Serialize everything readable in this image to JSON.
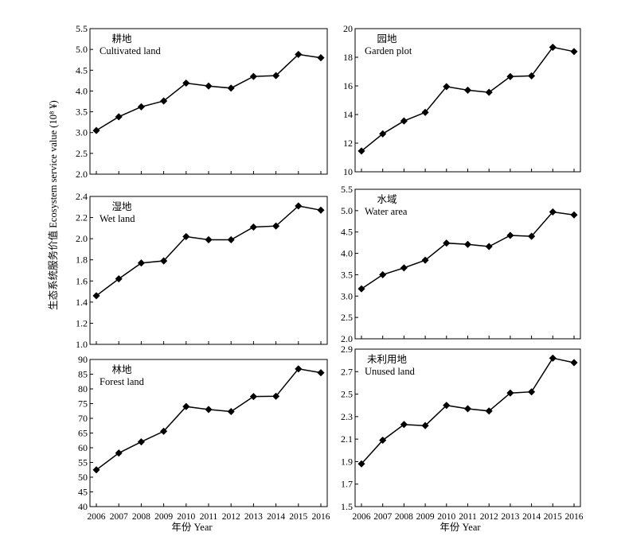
{
  "figure": {
    "ylabel": "生态系统服务价值 Ecosystem service value (10⁸ ¥)",
    "xlabel": "年份 Year"
  },
  "chart_data": [
    {
      "type": "line",
      "title_cn": "耕地",
      "title_en": "Cultivated land",
      "x": [
        2006,
        2007,
        2008,
        2009,
        2010,
        2011,
        2012,
        2013,
        2014,
        2015,
        2016
      ],
      "values": [
        3.05,
        3.38,
        3.62,
        3.76,
        4.19,
        4.12,
        4.07,
        4.35,
        4.37,
        4.88,
        4.8
      ],
      "ylim": [
        2.0,
        5.5
      ],
      "yticks": [
        2.0,
        2.5,
        3.0,
        3.5,
        4.0,
        4.5,
        5.0,
        5.5
      ],
      "ydecimals": 1,
      "xticks_shown": false
    },
    {
      "type": "line",
      "title_cn": "园地",
      "title_en": "Garden plot",
      "x": [
        2006,
        2007,
        2008,
        2009,
        2010,
        2011,
        2012,
        2013,
        2014,
        2015,
        2016
      ],
      "values": [
        11.45,
        12.65,
        13.55,
        14.15,
        15.95,
        15.7,
        15.55,
        16.65,
        16.7,
        18.7,
        18.4
      ],
      "ylim": [
        10,
        20
      ],
      "yticks": [
        10,
        12,
        14,
        16,
        18,
        20
      ],
      "ydecimals": 0,
      "xticks_shown": false
    },
    {
      "type": "line",
      "title_cn": "湿地",
      "title_en": "Wet land",
      "x": [
        2006,
        2007,
        2008,
        2009,
        2010,
        2011,
        2012,
        2013,
        2014,
        2015,
        2016
      ],
      "values": [
        1.46,
        1.62,
        1.77,
        1.79,
        2.02,
        1.99,
        1.99,
        2.11,
        2.12,
        2.31,
        2.27
      ],
      "ylim": [
        1.0,
        2.4
      ],
      "yticks": [
        1.0,
        1.2,
        1.4,
        1.6,
        1.8,
        2.0,
        2.2,
        2.4
      ],
      "ydecimals": 1,
      "xticks_shown": false
    },
    {
      "type": "line",
      "title_cn": "水域",
      "title_en": "Water area",
      "x": [
        2006,
        2007,
        2008,
        2009,
        2010,
        2011,
        2012,
        2013,
        2014,
        2015,
        2016
      ],
      "values": [
        3.17,
        3.5,
        3.66,
        3.84,
        4.24,
        4.21,
        4.16,
        4.42,
        4.4,
        4.97,
        4.9
      ],
      "ylim": [
        2.0,
        5.5
      ],
      "yticks": [
        2.0,
        2.5,
        3.0,
        3.5,
        4.0,
        4.5,
        5.0,
        5.5
      ],
      "ydecimals": 1,
      "xticks_shown": false
    },
    {
      "type": "line",
      "title_cn": "林地",
      "title_en": "Forest land",
      "x": [
        2006,
        2007,
        2008,
        2009,
        2010,
        2011,
        2012,
        2013,
        2014,
        2015,
        2016
      ],
      "values": [
        52.5,
        58.2,
        62.0,
        65.6,
        74.0,
        73.0,
        72.3,
        77.4,
        77.5,
        86.8,
        85.5
      ],
      "ylim": [
        40,
        90
      ],
      "yticks": [
        40,
        45,
        50,
        55,
        60,
        65,
        70,
        75,
        80,
        85,
        90
      ],
      "ydecimals": 0,
      "xticks_shown": true
    },
    {
      "type": "line",
      "title_cn": "未利用地",
      "title_en": "Unused land",
      "x": [
        2006,
        2007,
        2008,
        2009,
        2010,
        2011,
        2012,
        2013,
        2014,
        2015,
        2016
      ],
      "values": [
        1.88,
        2.09,
        2.23,
        2.22,
        2.4,
        2.37,
        2.35,
        2.51,
        2.52,
        2.82,
        2.78
      ],
      "ylim": [
        1.5,
        2.9
      ],
      "yticks": [
        1.5,
        1.7,
        1.9,
        2.1,
        2.3,
        2.5,
        2.7,
        2.9
      ],
      "ydecimals": 1,
      "xticks_shown": true
    }
  ]
}
